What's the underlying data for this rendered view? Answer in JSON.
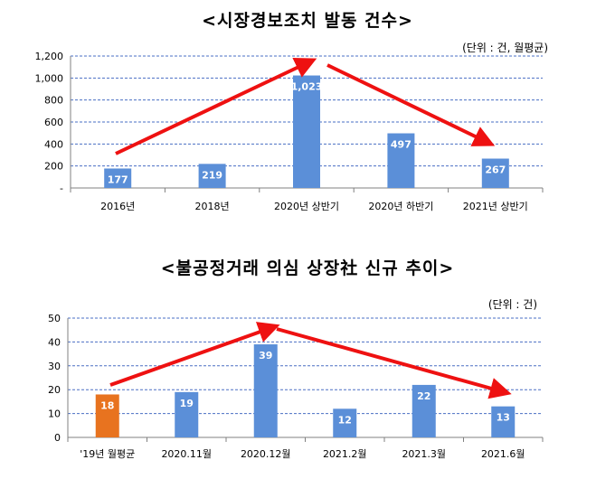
{
  "charts": [
    {
      "title": "<시장경보조치 발동 건수>",
      "unit": "(단위 : 건, 월평균)",
      "chart_data": {
        "type": "bar",
        "categories": [
          "2016년",
          "2018년",
          "2020년 상반기",
          "2020년 하반기",
          "2021년 상반기"
        ],
        "values": [
          177,
          219,
          1023,
          497,
          267
        ],
        "value_labels": [
          "177",
          "219",
          "1,023",
          "497",
          "267"
        ],
        "ylim": [
          0,
          1200
        ],
        "yticks": [
          0,
          200,
          400,
          600,
          800,
          1000,
          1200
        ],
        "ytick_labels": [
          "-",
          "200",
          "400",
          "600",
          "800",
          "1,000",
          "1,200"
        ],
        "grid": true,
        "bar_colors": [
          "#5b8fd8",
          "#5b8fd8",
          "#5b8fd8",
          "#5b8fd8",
          "#5b8fd8"
        ]
      }
    },
    {
      "title": "<불공정거래 의심 상장社 신규 추이>",
      "unit": "(단위 : 건)",
      "chart_data": {
        "type": "bar",
        "categories": [
          "'19년 월평균",
          "2020.11월",
          "2020.12월",
          "2021.2월",
          "2021.3월",
          "2021.6월"
        ],
        "values": [
          18,
          19,
          39,
          12,
          22,
          13
        ],
        "value_labels": [
          "18",
          "19",
          "39",
          "12",
          "22",
          "13"
        ],
        "ylim": [
          0,
          50
        ],
        "yticks": [
          0,
          10,
          20,
          30,
          40,
          50
        ],
        "ytick_labels": [
          "0",
          "10",
          "20",
          "30",
          "40",
          "50"
        ],
        "grid": true,
        "bar_colors": [
          "#e8731f",
          "#5b8fd8",
          "#5b8fd8",
          "#5b8fd8",
          "#5b8fd8",
          "#5b8fd8"
        ]
      }
    }
  ],
  "colors": {
    "grid": "#4a6fc4",
    "arrow": "#ee1111",
    "axis": "#808080"
  }
}
